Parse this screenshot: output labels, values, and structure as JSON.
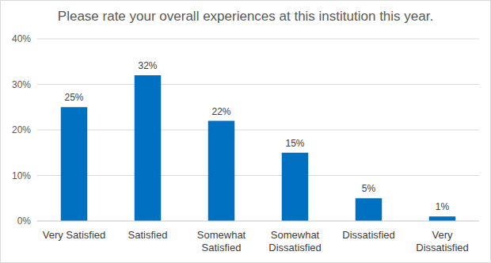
{
  "chart_data": {
    "type": "bar",
    "title": "Please rate your overall experiences at this institution this year.",
    "categories": [
      "Very Satisfied",
      "Satisfied",
      "Somewhat Satisfied",
      "Somewhat Dissatisfied",
      "Dissatisfied",
      "Very Dissatisfied"
    ],
    "values": [
      25,
      32,
      22,
      15,
      5,
      1
    ],
    "value_labels": [
      "25%",
      "32%",
      "22%",
      "15%",
      "5%",
      "1%"
    ],
    "color": "#0070c0",
    "ylim": [
      0,
      40
    ],
    "yticks": [
      {
        "value": 0,
        "label": "0%"
      },
      {
        "value": 10,
        "label": "10%"
      },
      {
        "value": 20,
        "label": "20%"
      },
      {
        "value": 30,
        "label": "30%"
      },
      {
        "value": 40,
        "label": "40%"
      }
    ],
    "grid": true,
    "data_labels": true
  }
}
